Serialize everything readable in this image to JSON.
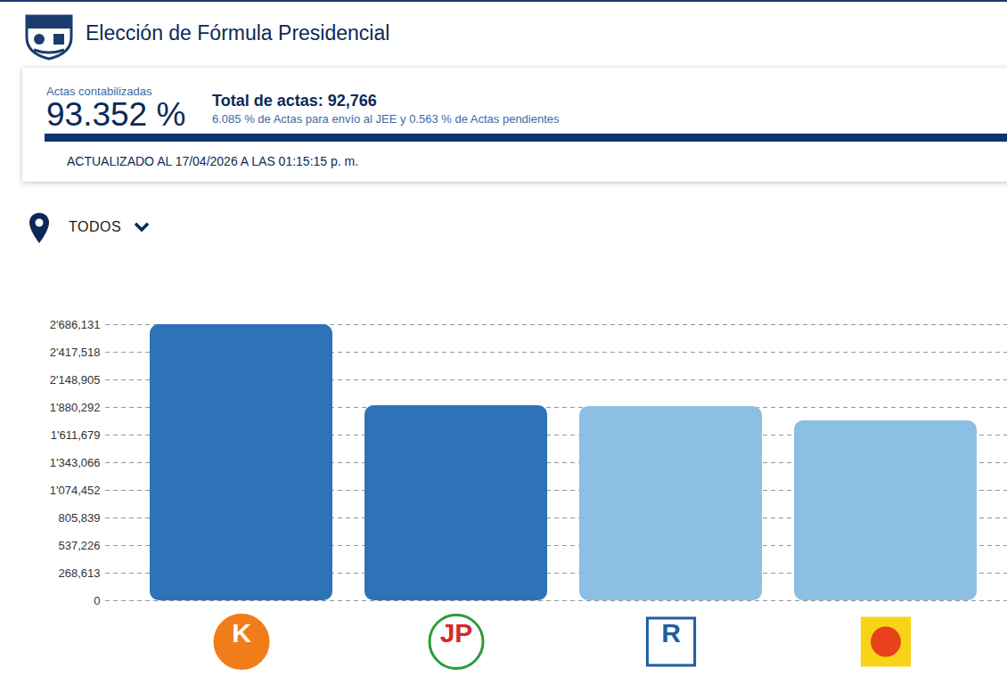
{
  "header": {
    "title": "Elección de Fórmula Presidencial",
    "progress_label": "Actas contabilizadas",
    "progress_value": "93.352 %",
    "total": "Total de actas: 92,766",
    "detail": "6.085 % de Actas para envío al JEE y 0.563 % de Actas pendientes",
    "updated": "ACTUALIZADO AL 17/04/2026 A LAS 01:15:15 p. m.",
    "filter": "TODOS"
  },
  "chart_data": {
    "type": "bar",
    "categories": [
      "K",
      "JP",
      "R",
      null
    ],
    "values": [
      2686131,
      1897000,
      1889000,
      1750000
    ],
    "colors": [
      "#2e72b8",
      "#2e72b8",
      "#8bbfe3",
      "#8bbfe3"
    ],
    "ylim": [
      0,
      2686131
    ],
    "yticks": [
      0,
      {
        "value": 268613,
        "label": "268,613"
      },
      {
        "value": 537226,
        "label": "537,226"
      },
      {
        "value": 805839,
        "label": "805,839"
      },
      {
        "value": 1074452,
        "label": "1'074,452"
      },
      {
        "value": 1343066,
        "label": "1'343,066"
      },
      {
        "value": 1611679,
        "label": "1'611,679"
      },
      {
        "value": 1880292,
        "label": "1'880,292"
      },
      {
        "value": 2148905,
        "label": "2'148,905"
      },
      {
        "value": 2417518,
        "label": "2'417,518"
      },
      {
        "value": 2686131,
        "label": "2'686,131"
      }
    ],
    "grid": true
  }
}
